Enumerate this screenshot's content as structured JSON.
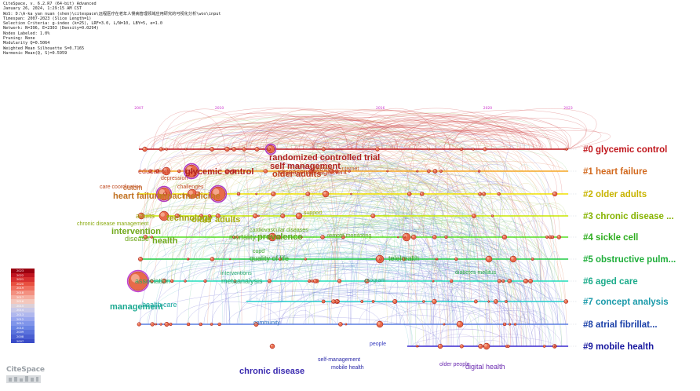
{
  "header": {
    "lines": [
      "CiteSpace, v. 6.2.R7 (64-bit) Advanced",
      "January 26, 2024, 1:29:15 AM CST",
      "WoS: D:\\A-ka yan nuan (shen)\\citespace\\远程医疗在老年人慢病管理领域应用研究的可视化分析\\wos\\input",
      "Timespan: 2007-2023 (Slice Length=1)",
      "Selection Criteria: g-index (k=25), LRF=3.0, L/N=10, LBY=5, e=1.0",
      "Network: N=396, E=2303 (Density=0.0294)",
      "Nodes Labeled: 1.0%",
      "Pruning: None",
      "Modularity Q=0.5064",
      "Weighted Mean Silhouette S=0.7165",
      "Harmonic Mean(Q, S)=0.5959"
    ]
  },
  "timeline": {
    "years": [
      {
        "year": "2007",
        "value": 2007
      },
      {
        "year": "2010",
        "value": 2010
      },
      {
        "year": "2016",
        "value": 2016
      },
      {
        "year": "2020",
        "value": 2020
      },
      {
        "year": "2023",
        "value": 2023
      }
    ],
    "year_color": "#cc33cc"
  },
  "clusters": [
    {
      "id": 0,
      "label": "#0 glycemic control",
      "color": "#c0151b",
      "line_color": "#c0151b"
    },
    {
      "id": 1,
      "label": "#1 heart failure",
      "color": "#d2691e",
      "line_color": "#f5a623"
    },
    {
      "id": 2,
      "label": "#2 older adults",
      "color": "#c8b400",
      "line_color": "#f0e000"
    },
    {
      "id": 3,
      "label": "#3 chronic disease ...",
      "color": "#86b300",
      "line_color": "#c8e600"
    },
    {
      "id": 4,
      "label": "#4 sickle cell",
      "color": "#2eae1f",
      "line_color": "#55dd22"
    },
    {
      "id": 5,
      "label": "#5 obstructive pulm...",
      "color": "#1fae3a",
      "line_color": "#22cc44"
    },
    {
      "id": 6,
      "label": "#6 aged care",
      "color": "#1aab8a",
      "line_color": "#22ddbb"
    },
    {
      "id": 7,
      "label": "#7 concept analysis",
      "color": "#1a9aaa",
      "line_color": "#22cccc"
    },
    {
      "id": 8,
      "label": "#8 atrial fibrillat...",
      "color": "#1a3fa8",
      "line_color": "#5a7fe0"
    },
    {
      "id": 9,
      "label": "#9 mobile health",
      "color": "#1a1aa0",
      "line_color": "#3a2ad0"
    }
  ],
  "keywords": [
    {
      "text": "randomized controlled trial",
      "color": "#b02020",
      "size": "large"
    },
    {
      "text": "self management",
      "color": "#b02020",
      "size": "large"
    },
    {
      "text": "older adults",
      "color": "#c03a1a",
      "size": "large"
    },
    {
      "text": "disease management",
      "color": "#c03a1a",
      "size": "medium"
    },
    {
      "text": "barriers",
      "color": "#c06020",
      "size": "small"
    },
    {
      "text": "internet",
      "color": "#c06020",
      "size": "small"
    },
    {
      "text": "education",
      "color": "#c03020",
      "size": "medium"
    },
    {
      "text": "glycemic control",
      "color": "#b02020",
      "size": "large"
    },
    {
      "text": "depression",
      "color": "#c0502a",
      "size": "small"
    },
    {
      "text": "care coordination",
      "color": "#c04a20",
      "size": "small"
    },
    {
      "text": "challenges",
      "color": "#c04a20",
      "size": "small"
    },
    {
      "text": "outcm",
      "color": "#c06020",
      "size": "medium"
    },
    {
      "text": "heart failure",
      "color": "#c07020",
      "size": "large"
    },
    {
      "text": "impact",
      "color": "#c08020",
      "size": "large"
    },
    {
      "text": "medicine",
      "color": "#c07a20",
      "size": "large"
    },
    {
      "text": "adults",
      "color": "#a0a010",
      "size": "medium"
    },
    {
      "text": "technology",
      "color": "#a0a010",
      "size": "large"
    },
    {
      "text": "older adults",
      "color": "#a8b010",
      "size": "large"
    },
    {
      "text": "support",
      "color": "#a8b010",
      "size": "small"
    },
    {
      "text": "chronic disease management",
      "color": "#8aaa10",
      "size": "small"
    },
    {
      "text": "intervention",
      "color": "#70a81a",
      "size": "large"
    },
    {
      "text": "disease",
      "color": "#70a81a",
      "size": "medium"
    },
    {
      "text": "health",
      "color": "#70a81a",
      "size": "large"
    },
    {
      "text": "cardiovascular diseases",
      "color": "#6aaa1a",
      "size": "small"
    },
    {
      "text": "mortality",
      "color": "#5aa81a",
      "size": "medium"
    },
    {
      "text": "prevalence",
      "color": "#5aa81a",
      "size": "large"
    },
    {
      "text": "remote monitoring",
      "color": "#5aa81a",
      "size": "small"
    },
    {
      "text": "copd",
      "color": "#3aa82a",
      "size": "small"
    },
    {
      "text": "quality of life",
      "color": "#3aa82a",
      "size": "medium"
    },
    {
      "text": "telehealth",
      "color": "#3aa82a",
      "size": "medium"
    },
    {
      "text": "diabetes mellitus",
      "color": "#2aa84a",
      "size": "small"
    },
    {
      "text": "association",
      "color": "#2aaa60",
      "size": "medium"
    },
    {
      "text": "interventions",
      "color": "#2aaa70",
      "size": "small"
    },
    {
      "text": "metaanalysis",
      "color": "#2aaa70",
      "size": "medium"
    },
    {
      "text": "program",
      "color": "#2aaa80",
      "size": "small"
    },
    {
      "text": "management",
      "color": "#1aa890",
      "size": "large"
    },
    {
      "text": "health care",
      "color": "#1aa8a0",
      "size": "medium"
    },
    {
      "text": "community",
      "color": "#2a70c0",
      "size": "small"
    },
    {
      "text": "people",
      "color": "#3a40c0",
      "size": "small"
    },
    {
      "text": "self-management",
      "color": "#2a2aa8",
      "size": "small"
    },
    {
      "text": "mobile health",
      "color": "#2a2aa8",
      "size": "small"
    },
    {
      "text": "chronic disease",
      "color": "#3a2ab0",
      "size": "large"
    },
    {
      "text": "older people",
      "color": "#6a2ab0",
      "size": "small"
    },
    {
      "text": "digital health",
      "color": "#6a2ab0",
      "size": "medium"
    }
  ],
  "legend": {
    "years": [
      "2023",
      "2022",
      "2021",
      "2020",
      "2019",
      "2018",
      "2017",
      "2016",
      "2015",
      "2014",
      "2013",
      "2012",
      "2011",
      "2010",
      "2009",
      "2008",
      "2007"
    ],
    "colors": [
      "#9a0010",
      "#c01520",
      "#d83030",
      "#e85040",
      "#f07060",
      "#f39080",
      "#f5aea0",
      "#f4c7bc",
      "#dcd0d8",
      "#c8c8e8",
      "#b0b8ee",
      "#98a6ee",
      "#8095ea",
      "#6a84e4",
      "#5a72dc",
      "#4a5fd2",
      "#3a4cc8"
    ]
  },
  "logo": {
    "text": "CiteSpace"
  }
}
